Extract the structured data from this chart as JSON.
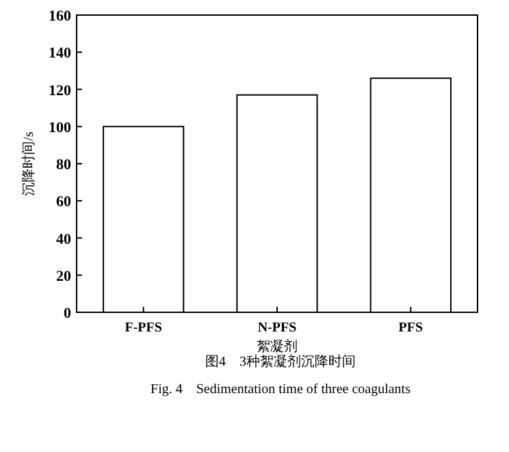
{
  "chart_data": {
    "type": "bar",
    "categories": [
      "F-PFS",
      "N-PFS",
      "PFS"
    ],
    "values": [
      100,
      117,
      126
    ],
    "color": "#ffffff",
    "xlabel": "絮凝剂",
    "ylabel": "沉降时间/s",
    "ylim": [
      0,
      160
    ],
    "yticks": [
      0,
      20,
      40,
      60,
      80,
      100,
      120,
      140,
      160
    ],
    "grid": false,
    "annotations": [
      "图4　3种絮凝剂沉降时间",
      "Fig. 4　Sedimentation time of three coagulants"
    ]
  }
}
